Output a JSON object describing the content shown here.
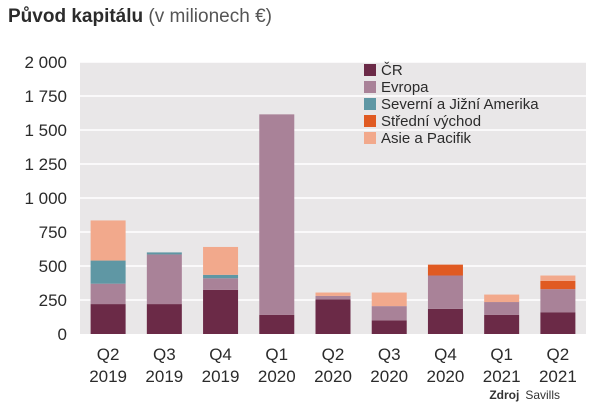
{
  "chart_data": {
    "type": "bar",
    "stacked": true,
    "title_bold": "Původ kapitálu",
    "title_rest": "(v milionech €)",
    "categories": [
      [
        "Q2",
        "2019"
      ],
      [
        "Q3",
        "2019"
      ],
      [
        "Q4",
        "2019"
      ],
      [
        "Q1",
        "2020"
      ],
      [
        "Q2",
        "2020"
      ],
      [
        "Q3",
        "2020"
      ],
      [
        "Q4",
        "2020"
      ],
      [
        "Q1",
        "2021"
      ],
      [
        "Q2",
        "2021"
      ]
    ],
    "ylim": [
      0,
      2000
    ],
    "yticks": [
      0,
      250,
      500,
      750,
      1000,
      1250,
      1500,
      1750,
      2000
    ],
    "ytick_labels": [
      "0",
      "250",
      "500",
      "750",
      "1 000",
      "1 250",
      "1 500",
      "1 750",
      "2 000"
    ],
    "grid": true,
    "legend_position": "top-right",
    "series": [
      {
        "name": "ČR",
        "color": "#6b2a47",
        "values": [
          220,
          220,
          325,
          140,
          255,
          100,
          185,
          140,
          160
        ]
      },
      {
        "name": "Evropa",
        "color": "#a98298",
        "values": [
          150,
          365,
          85,
          1475,
          25,
          105,
          245,
          95,
          170
        ]
      },
      {
        "name": "Severní a Jižní Amerika",
        "color": "#5f97a4",
        "values": [
          170,
          15,
          25,
          0,
          0,
          0,
          0,
          0,
          0
        ]
      },
      {
        "name": "Střední východ",
        "color": "#e05a22",
        "values": [
          0,
          0,
          0,
          0,
          0,
          0,
          80,
          0,
          60
        ]
      },
      {
        "name": "Asie a Pacifik",
        "color": "#f2a98c",
        "values": [
          295,
          0,
          205,
          0,
          25,
          100,
          0,
          55,
          40
        ]
      }
    ],
    "source_label": "Zdroj",
    "source_value": "Savills"
  }
}
